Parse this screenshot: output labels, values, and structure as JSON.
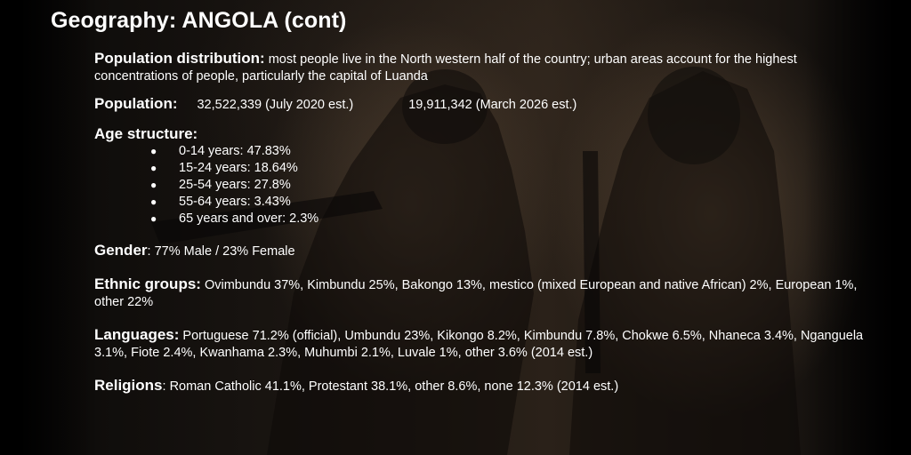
{
  "slide": {
    "title": "Geography: ANGOLA (cont)",
    "population_distribution": {
      "label": "Population distribution:",
      "text": " most people live in the North western half of the country; urban areas account for the highest concentrations of people, particularly the capital of Luanda"
    },
    "population": {
      "label": "Population:",
      "value_2020": "32,522,339 (July 2020 est.)",
      "value_2026": "19,911,342 (March 2026 est.)"
    },
    "age_structure": {
      "label": "Age structure:",
      "bullet": "●",
      "items": [
        "0-14 years: 47.83%",
        "15-24 years: 18.64%",
        "25-54 years: 27.8%",
        "55-64 years: 3.43%",
        "65 years and over: 2.3%"
      ]
    },
    "gender": {
      "label": "Gender",
      "text": ": 77% Male / 23% Female"
    },
    "ethnic_groups": {
      "label": "Ethnic groups:",
      "text": " Ovimbundu 37%, Kimbundu 25%, Bakongo 13%, mestico (mixed European and native African) 2%, European 1%, other 22%"
    },
    "languages": {
      "label": "Languages:",
      "text": " Portuguese 71.2% (official), Umbundu 23%, Kikongo 8.2%, Kimbundu 7.8%, Chokwe 6.5%, Nhaneca 3.4%, Nganguela 3.1%, Fiote 2.4%, Kwanhama 2.3%, Muhumbi 2.1%, Luvale 1%, other 3.6% (2014 est.)"
    },
    "religions": {
      "label": "Religions",
      "text": ": Roman Catholic 41.1%, Protestant 38.1%, other 8.6%, none 12.3% (2014 est.)"
    }
  },
  "colors": {
    "text": "#ffffff",
    "background_tone": "#2a2119"
  }
}
